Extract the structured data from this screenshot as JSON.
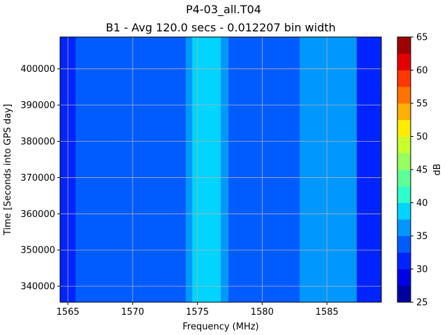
{
  "chart_data": {
    "type": "heatmap",
    "title": "P4-03_all.T04",
    "subtitle": "B1 - Avg 120.0 secs - 0.012207 bin width",
    "xlabel": "Frequency (MHz)",
    "ylabel": "Time [Seconds into GPS day]",
    "colorbar_label": "dB",
    "xlim": [
      1564.4,
      1589.2
    ],
    "ylim": [
      335600,
      408800
    ],
    "x_ticks": [
      1565,
      1570,
      1575,
      1580,
      1585
    ],
    "x_tick_labels": [
      "1565",
      "1570",
      "1575",
      "1580",
      "1585"
    ],
    "y_ticks": [
      340000,
      350000,
      360000,
      370000,
      380000,
      390000,
      400000
    ],
    "y_tick_labels": [
      "340000",
      "350000",
      "360000",
      "370000",
      "380000",
      "390000",
      "400000"
    ],
    "grid": true,
    "colorbar": {
      "levels": [
        25,
        27.5,
        30,
        32.5,
        35,
        37.5,
        40,
        42.5,
        45,
        47.5,
        50,
        52.5,
        55,
        57.5,
        60,
        62.5,
        65
      ],
      "tick_values": [
        25,
        30,
        35,
        40,
        45,
        50,
        55,
        60,
        65
      ],
      "tick_labels": [
        "25",
        "30",
        "35",
        "40",
        "45",
        "50",
        "55",
        "60",
        "65"
      ],
      "colors": [
        "#00009f",
        "#0000e4",
        "#0024ff",
        "#005cff",
        "#0098ff",
        "#00d4ff",
        "#2dffc9",
        "#5fff97",
        "#97ff5f",
        "#c9ff2d",
        "#ffec00",
        "#ffb000",
        "#ff7400",
        "#ff3800",
        "#e40000",
        "#9f0000"
      ]
    },
    "frequency_bands_db": [
      {
        "x_start": 1564.4,
        "x_end": 1565.6,
        "db": 31.5
      },
      {
        "x_start": 1565.6,
        "x_end": 1574.1,
        "db": 33.8
      },
      {
        "x_start": 1574.1,
        "x_end": 1574.6,
        "db": 36.3
      },
      {
        "x_start": 1574.6,
        "x_end": 1576.8,
        "db": 38.8
      },
      {
        "x_start": 1576.8,
        "x_end": 1577.4,
        "db": 36.3
      },
      {
        "x_start": 1577.4,
        "x_end": 1582.9,
        "db": 33.8
      },
      {
        "x_start": 1582.9,
        "x_end": 1587.3,
        "db": 36.3
      },
      {
        "x_start": 1587.3,
        "x_end": 1589.2,
        "db": 31.5
      }
    ]
  }
}
